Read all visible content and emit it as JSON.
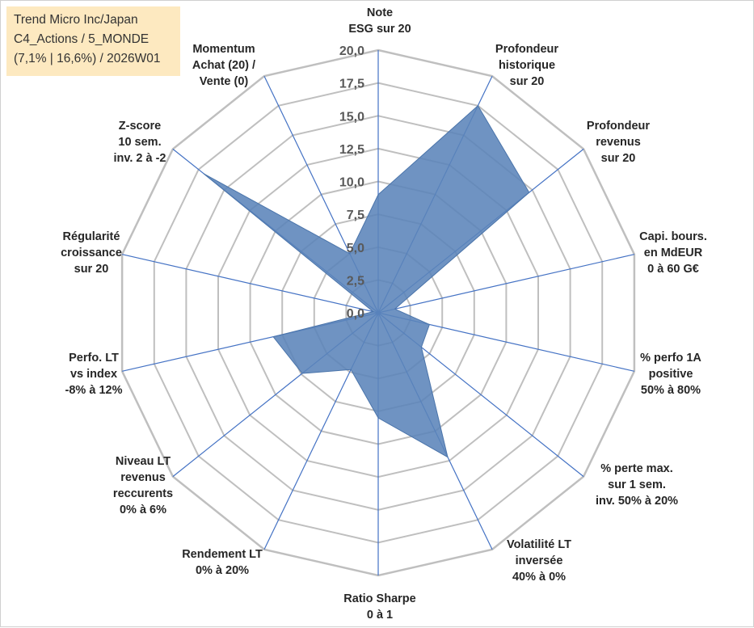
{
  "title_box": {
    "lines": [
      "Trend Micro Inc/Japan",
      "C4_Actions / 5_MONDE",
      "(7,1% | 16,6%) / 2026W01"
    ]
  },
  "colors": {
    "fill": "#5b84b9",
    "stroke": "#4a74aa",
    "spoke": "#4472c4",
    "grid": "#bfbfbf",
    "title_bg": "#fde9c0"
  },
  "chart_data": {
    "type": "radar",
    "r_range": [
      0,
      20
    ],
    "r_ticks": [
      "0,0",
      "2,5",
      "5,0",
      "7,5",
      "10,0",
      "12,5",
      "15,0",
      "17,5",
      "20,0"
    ],
    "axes": [
      [
        "Note",
        "ESG sur 20"
      ],
      [
        "Profondeur",
        "historique",
        "sur 20"
      ],
      [
        "Profondeur",
        "revenus",
        "sur 20"
      ],
      [
        "Capi. bours.",
        "en MdEUR",
        "0 à 60 G€"
      ],
      [
        "% perfo 1A",
        "positive",
        "50% à 80%"
      ],
      [
        "% perte max.",
        "sur 1 sem.",
        "inv. 50% à 20%"
      ],
      [
        "Volatilité LT",
        "inversée",
        "40% à 0%"
      ],
      [
        "Ratio Sharpe",
        "0 à 1"
      ],
      [
        "Rendement LT",
        "0% à 20%"
      ],
      [
        "Niveau LT",
        "revenus",
        "reccurents",
        "0% à 6%"
      ],
      [
        "Perfo. LT",
        "vs index",
        "-8% à 12%"
      ],
      [
        "Régularité",
        "croissance",
        "sur 20"
      ],
      [
        "Z-score",
        "10 sem.",
        "inv. 2 à -2"
      ],
      [
        "Momentum",
        "Achat (20) /",
        "Vente (0)"
      ]
    ],
    "series": [
      {
        "name": "Trend Micro Inc/Japan",
        "values": [
          9.0,
          17.5,
          14.7,
          1.3,
          4.0,
          4.2,
          12.2,
          8.0,
          4.8,
          7.4,
          8.2,
          0.4,
          17.0,
          5.0
        ]
      }
    ]
  }
}
